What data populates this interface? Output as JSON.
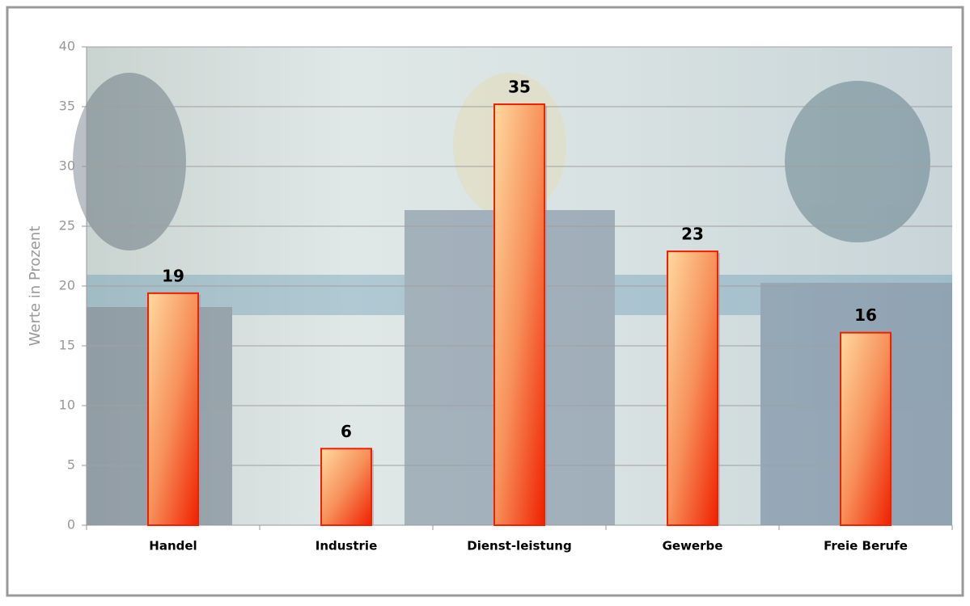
{
  "chart_data": {
    "type": "bar",
    "y_label": "Werte in Prozent",
    "categories": [
      "Handel",
      "Industrie",
      "Dienst-leistung",
      "Gewerbe",
      "Freie Berufe"
    ],
    "values": [
      19.4,
      6.4,
      35.2,
      22.9,
      16.1
    ],
    "value_labels": [
      "19",
      "6",
      "35",
      "23",
      "16"
    ],
    "color": "#f02000",
    "ylim": [
      0,
      40
    ],
    "yticks": [
      0,
      5,
      10,
      15,
      20,
      25,
      30,
      35,
      40
    ],
    "grid": true
  }
}
